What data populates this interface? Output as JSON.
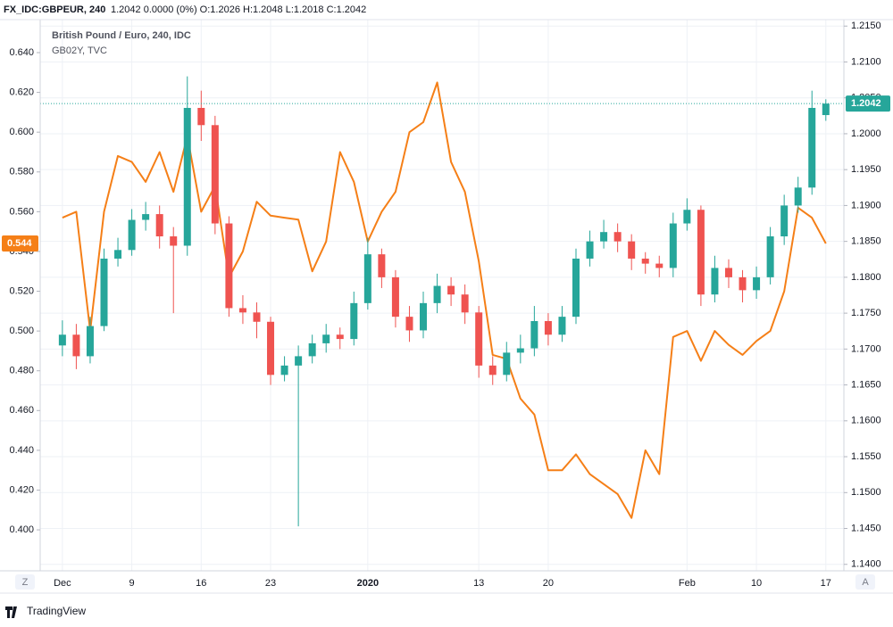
{
  "header": {
    "symbol": "FX_IDC:GBPEUR, 240",
    "quote": "1.2042 0.0000 (0%) O:1.2026 H:1.2048 L:1.2018 C:1.2042"
  },
  "ui": {
    "zoom": "Z",
    "auto": "A",
    "brand": "TradingView"
  },
  "chart_data": {
    "type": "candlestick",
    "title": "British Pound / Euro, 240, IDC",
    "x": [
      0,
      1,
      2,
      3,
      4,
      5,
      6,
      7,
      8,
      9,
      10,
      11,
      12,
      13,
      14,
      15,
      16,
      17,
      18,
      19,
      20,
      21,
      22,
      23,
      24,
      25,
      26,
      27,
      28,
      29,
      30,
      31,
      32,
      33,
      34,
      35,
      36,
      37,
      38,
      39,
      40,
      41,
      42,
      43,
      44,
      45,
      46,
      47,
      48,
      49,
      50,
      51,
      52,
      53,
      54,
      55
    ],
    "xlim": [
      -1.6,
      56.3
    ],
    "xticks": [
      {
        "value": 0,
        "label": "Dec"
      },
      {
        "value": 5,
        "label": "9"
      },
      {
        "value": 10,
        "label": "16"
      },
      {
        "value": 15,
        "label": "23"
      },
      {
        "value": 22,
        "label": "2020"
      },
      {
        "value": 30,
        "label": "13"
      },
      {
        "value": 35,
        "label": "20"
      },
      {
        "value": 45,
        "label": "Feb"
      },
      {
        "value": 50,
        "label": "10"
      },
      {
        "value": 55,
        "label": "17"
      }
    ],
    "ylim": [
      1.1391,
      1.2159
    ],
    "yticks": [
      {
        "value": 1.14,
        "label": "1.1400"
      },
      {
        "value": 1.145,
        "label": "1.1450"
      },
      {
        "value": 1.15,
        "label": "1.1500"
      },
      {
        "value": 1.155,
        "label": "1.1550"
      },
      {
        "value": 1.16,
        "label": "1.1600"
      },
      {
        "value": 1.165,
        "label": "1.1650"
      },
      {
        "value": 1.17,
        "label": "1.1700"
      },
      {
        "value": 1.175,
        "label": "1.1750"
      },
      {
        "value": 1.18,
        "label": "1.1800"
      },
      {
        "value": 1.185,
        "label": "1.1850"
      },
      {
        "value": 1.19,
        "label": "1.1900"
      },
      {
        "value": 1.195,
        "label": "1.1950"
      },
      {
        "value": 1.2,
        "label": "1.2000"
      },
      {
        "value": 1.205,
        "label": "1.2050"
      },
      {
        "value": 1.21,
        "label": "1.2100"
      },
      {
        "value": 1.215,
        "label": "1.2150"
      }
    ],
    "y2lim": [
      0.3794,
      0.6566
    ],
    "y2ticks": [
      {
        "value": 0.4,
        "label": "0.400"
      },
      {
        "value": 0.42,
        "label": "0.420"
      },
      {
        "value": 0.44,
        "label": "0.440"
      },
      {
        "value": 0.46,
        "label": "0.460"
      },
      {
        "value": 0.48,
        "label": "0.480"
      },
      {
        "value": 0.5,
        "label": "0.500"
      },
      {
        "value": 0.52,
        "label": "0.520"
      },
      {
        "value": 0.54,
        "label": "0.540"
      },
      {
        "value": 0.56,
        "label": "0.560"
      },
      {
        "value": 0.58,
        "label": "0.580"
      },
      {
        "value": 0.6,
        "label": "0.600"
      },
      {
        "value": 0.62,
        "label": "0.620"
      },
      {
        "value": 0.64,
        "label": "0.640"
      }
    ],
    "grid": true,
    "series": [
      {
        "type": "candlestick",
        "up_color": "#26a69a",
        "down_color": "#ef5350",
        "open": [
          1.1705,
          1.172,
          1.169,
          1.1732,
          1.1826,
          1.1838,
          1.188,
          1.1888,
          1.1857,
          1.1844,
          1.2036,
          1.2012,
          1.1875,
          1.1757,
          1.1751,
          1.1738,
          1.1664,
          1.1677,
          1.169,
          1.1708,
          1.172,
          1.1714,
          1.1764,
          1.1832,
          1.18,
          1.1745,
          1.1726,
          1.1764,
          1.1788,
          1.1776,
          1.1751,
          1.1677,
          1.1664,
          1.1695,
          1.1701,
          1.1739,
          1.172,
          1.1745,
          1.1826,
          1.185,
          1.1863,
          1.185,
          1.1826,
          1.1819,
          1.1813,
          1.1875,
          1.1894,
          1.1776,
          1.1813,
          1.18,
          1.1782,
          1.18,
          1.1857,
          1.19,
          1.1925,
          1.2026
        ],
        "high": [
          1.174,
          1.1735,
          1.1745,
          1.184,
          1.1855,
          1.1895,
          1.1905,
          1.19,
          1.187,
          1.208,
          1.206,
          1.2025,
          1.1885,
          1.1775,
          1.1765,
          1.1745,
          1.169,
          1.1705,
          1.172,
          1.1735,
          1.173,
          1.178,
          1.1855,
          1.184,
          1.181,
          1.176,
          1.178,
          1.1805,
          1.18,
          1.179,
          1.176,
          1.169,
          1.171,
          1.172,
          1.176,
          1.175,
          1.176,
          1.184,
          1.1865,
          1.188,
          1.1875,
          1.186,
          1.1835,
          1.183,
          1.189,
          1.191,
          1.19,
          1.183,
          1.1825,
          1.181,
          1.1815,
          1.187,
          1.1915,
          1.194,
          1.206,
          1.2048
        ],
        "low": [
          1.169,
          1.1672,
          1.168,
          1.1725,
          1.1815,
          1.183,
          1.1865,
          1.184,
          1.175,
          1.183,
          1.199,
          1.186,
          1.1745,
          1.1735,
          1.1715,
          1.165,
          1.1655,
          1.1453,
          1.168,
          1.1695,
          1.17,
          1.1705,
          1.1755,
          1.1785,
          1.173,
          1.171,
          1.1715,
          1.175,
          1.176,
          1.1735,
          1.166,
          1.165,
          1.1655,
          1.168,
          1.169,
          1.1705,
          1.171,
          1.1735,
          1.1815,
          1.184,
          1.1835,
          1.181,
          1.1805,
          1.18,
          1.18,
          1.1865,
          1.176,
          1.1765,
          1.1785,
          1.1765,
          1.177,
          1.179,
          1.1845,
          1.189,
          1.1915,
          1.2018
        ],
        "close": [
          1.172,
          1.169,
          1.1732,
          1.1826,
          1.1838,
          1.188,
          1.1888,
          1.1857,
          1.1844,
          1.2036,
          1.2012,
          1.1875,
          1.1757,
          1.1751,
          1.1738,
          1.1664,
          1.1677,
          1.169,
          1.1708,
          1.172,
          1.1714,
          1.1764,
          1.1832,
          1.18,
          1.1745,
          1.1726,
          1.1764,
          1.1788,
          1.1776,
          1.1751,
          1.1677,
          1.1664,
          1.1695,
          1.1701,
          1.1739,
          1.172,
          1.1745,
          1.1826,
          1.185,
          1.1863,
          1.185,
          1.1826,
          1.1819,
          1.1813,
          1.1875,
          1.1894,
          1.1776,
          1.1813,
          1.18,
          1.1782,
          1.18,
          1.1857,
          1.19,
          1.1925,
          1.2036,
          1.2042
        ]
      },
      {
        "type": "line",
        "name": "GB02Y, TVC",
        "color": "#f57f17",
        "axis": "y2",
        "values": [
          0.557,
          0.56,
          0.5,
          0.56,
          0.588,
          0.585,
          0.575,
          0.59,
          0.57,
          0.598,
          0.56,
          0.573,
          0.527,
          0.54,
          0.565,
          0.558,
          0.557,
          0.556,
          0.53,
          0.545,
          0.59,
          0.575,
          0.545,
          0.56,
          0.57,
          0.6,
          0.605,
          0.625,
          0.585,
          0.57,
          0.535,
          0.488,
          0.486,
          0.466,
          0.458,
          0.43,
          0.43,
          0.438,
          0.428,
          0.423,
          0.418,
          0.406,
          0.44,
          0.428,
          0.497,
          0.5,
          0.485,
          0.5,
          0.493,
          0.488,
          0.495,
          0.5,
          0.52,
          0.562,
          0.557,
          0.544
        ]
      }
    ]
  }
}
